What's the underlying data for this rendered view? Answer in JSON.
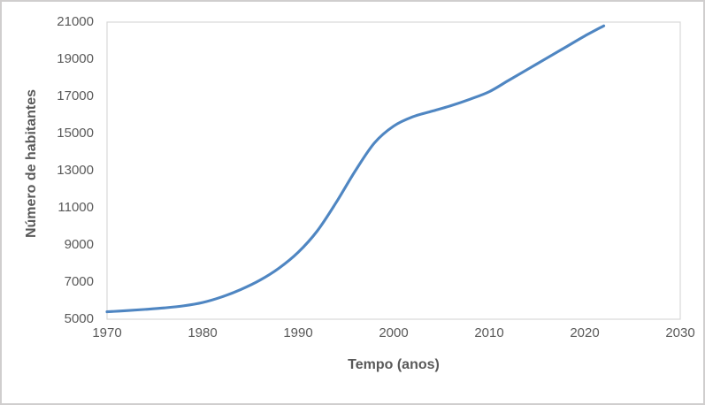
{
  "chart_data": {
    "type": "line",
    "title": "",
    "xlabel": "Tempo (anos)",
    "ylabel": "Número de habitantes",
    "x": [
      1970,
      1972,
      1974,
      1976,
      1978,
      1980,
      1982,
      1984,
      1986,
      1988,
      1990,
      1992,
      1994,
      1996,
      1998,
      2000,
      2002,
      2004,
      2006,
      2008,
      2010,
      2012,
      2014,
      2016,
      2018,
      2020,
      2022
    ],
    "series": [
      {
        "name": "Número de habitantes",
        "values": [
          5400,
          5460,
          5530,
          5610,
          5720,
          5900,
          6200,
          6600,
          7100,
          7750,
          8600,
          9750,
          11300,
          13000,
          14500,
          15400,
          15900,
          16200,
          16500,
          16850,
          17250,
          17850,
          18450,
          19050,
          19650,
          20250,
          20800
        ]
      }
    ],
    "xlim": [
      1970,
      2030
    ],
    "ylim": [
      5000,
      21000
    ],
    "x_ticks": [
      1970,
      1980,
      1990,
      2000,
      2010,
      2020,
      2030
    ],
    "y_ticks": [
      5000,
      7000,
      9000,
      11000,
      13000,
      15000,
      17000,
      19000,
      21000
    ],
    "grid": false,
    "legend": "none",
    "smooth": true
  },
  "style": {
    "line_color": "#4f86c2",
    "axis_text_color": "#595959",
    "plot_border_color": "#d9d9d9",
    "frame_border_color": "#d0cece",
    "background": "#ffffff"
  }
}
